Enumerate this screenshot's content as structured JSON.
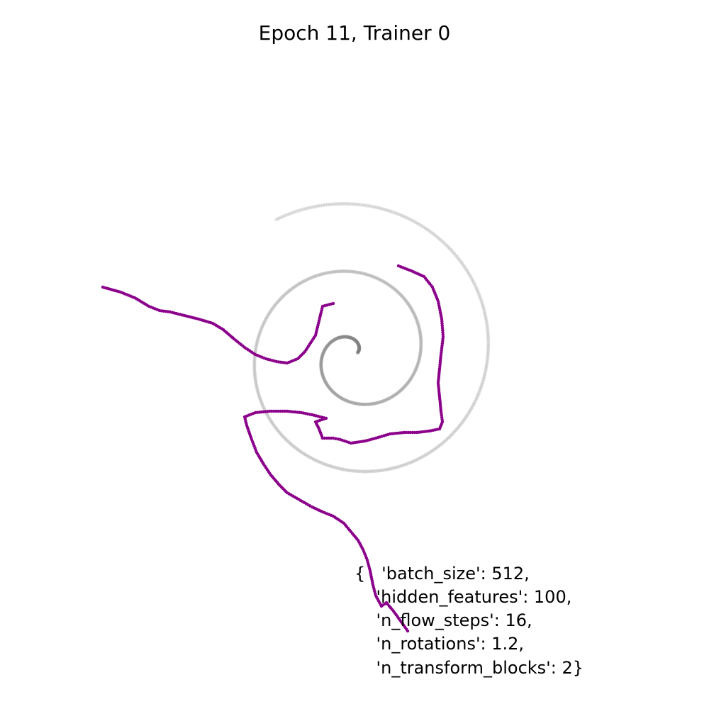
{
  "chart_data": {
    "type": "scatter",
    "title": "Epoch 11, Trainer 0",
    "axes_visible": false,
    "xlim": [
      -4,
      4
    ],
    "ylim": [
      -4,
      4
    ],
    "reference_series": {
      "name": "target spiral",
      "color": "#808080",
      "r_start": 0.05,
      "r_end": 2.2,
      "theta_start_deg": 30,
      "theta_end_deg": 840,
      "center": [
        0.0,
        0.0
      ]
    },
    "series": [
      {
        "name": "flow samples",
        "color": "#8b008b",
        "points": [
          [
            -3.55,
            0.95
          ],
          [
            -3.3,
            0.88
          ],
          [
            -3.1,
            0.8
          ],
          [
            -2.9,
            0.68
          ],
          [
            -2.75,
            0.62
          ],
          [
            -2.6,
            0.6
          ],
          [
            -2.4,
            0.55
          ],
          [
            -2.2,
            0.5
          ],
          [
            -2.0,
            0.44
          ],
          [
            -1.85,
            0.35
          ],
          [
            -1.7,
            0.22
          ],
          [
            -1.55,
            0.1
          ],
          [
            -1.4,
            0.0
          ],
          [
            -1.25,
            -0.06
          ],
          [
            -1.1,
            -0.1
          ],
          [
            -0.95,
            -0.12
          ],
          [
            -0.8,
            -0.06
          ],
          [
            -0.7,
            0.04
          ],
          [
            -0.55,
            0.27
          ],
          [
            -0.45,
            0.68
          ],
          [
            -0.3,
            0.72
          ],
          [
            0.62,
            1.25
          ],
          [
            0.8,
            1.18
          ],
          [
            0.98,
            1.1
          ],
          [
            1.1,
            0.95
          ],
          [
            1.18,
            0.75
          ],
          [
            1.23,
            0.5
          ],
          [
            1.25,
            0.25
          ],
          [
            1.22,
            0.0
          ],
          [
            1.2,
            -0.2
          ],
          [
            1.18,
            -0.4
          ],
          [
            1.2,
            -0.6
          ],
          [
            1.22,
            -0.8
          ],
          [
            1.24,
            -0.95
          ],
          [
            1.2,
            -1.05
          ],
          [
            1.05,
            -1.08
          ],
          [
            0.88,
            -1.1
          ],
          [
            0.7,
            -1.1
          ],
          [
            0.5,
            -1.12
          ],
          [
            0.3,
            -1.18
          ],
          [
            0.15,
            -1.22
          ],
          [
            -0.05,
            -1.25
          ],
          [
            -0.2,
            -1.2
          ],
          [
            -0.3,
            -1.18
          ],
          [
            -0.45,
            -1.18
          ],
          [
            -0.5,
            -1.05
          ],
          [
            -0.55,
            -0.95
          ],
          [
            -0.4,
            -0.9
          ],
          [
            -0.6,
            -0.85
          ],
          [
            -0.75,
            -0.82
          ],
          [
            -0.95,
            -0.8
          ],
          [
            -1.2,
            -0.8
          ],
          [
            -1.4,
            -0.82
          ],
          [
            -1.55,
            -0.88
          ],
          [
            -1.52,
            -1.0
          ],
          [
            -1.45,
            -1.2
          ],
          [
            -1.38,
            -1.38
          ],
          [
            -1.28,
            -1.55
          ],
          [
            -1.18,
            -1.7
          ],
          [
            -1.05,
            -1.85
          ],
          [
            -0.95,
            -1.95
          ],
          [
            -0.6,
            -2.15
          ],
          [
            -0.45,
            -2.22
          ],
          [
            -0.3,
            -2.28
          ],
          [
            -0.15,
            -2.38
          ],
          [
            -0.05,
            -2.5
          ],
          [
            0.05,
            -2.62
          ],
          [
            0.12,
            -2.75
          ],
          [
            0.18,
            -2.9
          ],
          [
            0.22,
            -3.05
          ],
          [
            0.26,
            -3.25
          ],
          [
            0.3,
            -3.4
          ],
          [
            0.38,
            -3.55
          ],
          [
            0.45,
            -3.5
          ],
          [
            0.55,
            -3.62
          ],
          [
            0.68,
            -3.8
          ],
          [
            0.75,
            -3.9
          ]
        ]
      }
    ],
    "annotation": [
      "{   'batch_size': 512,",
      "    'hidden_features': 100,",
      "    'n_flow_steps': 16,",
      "    'n_rotations': 1.2,",
      "    'n_transform_blocks': 2}"
    ]
  }
}
